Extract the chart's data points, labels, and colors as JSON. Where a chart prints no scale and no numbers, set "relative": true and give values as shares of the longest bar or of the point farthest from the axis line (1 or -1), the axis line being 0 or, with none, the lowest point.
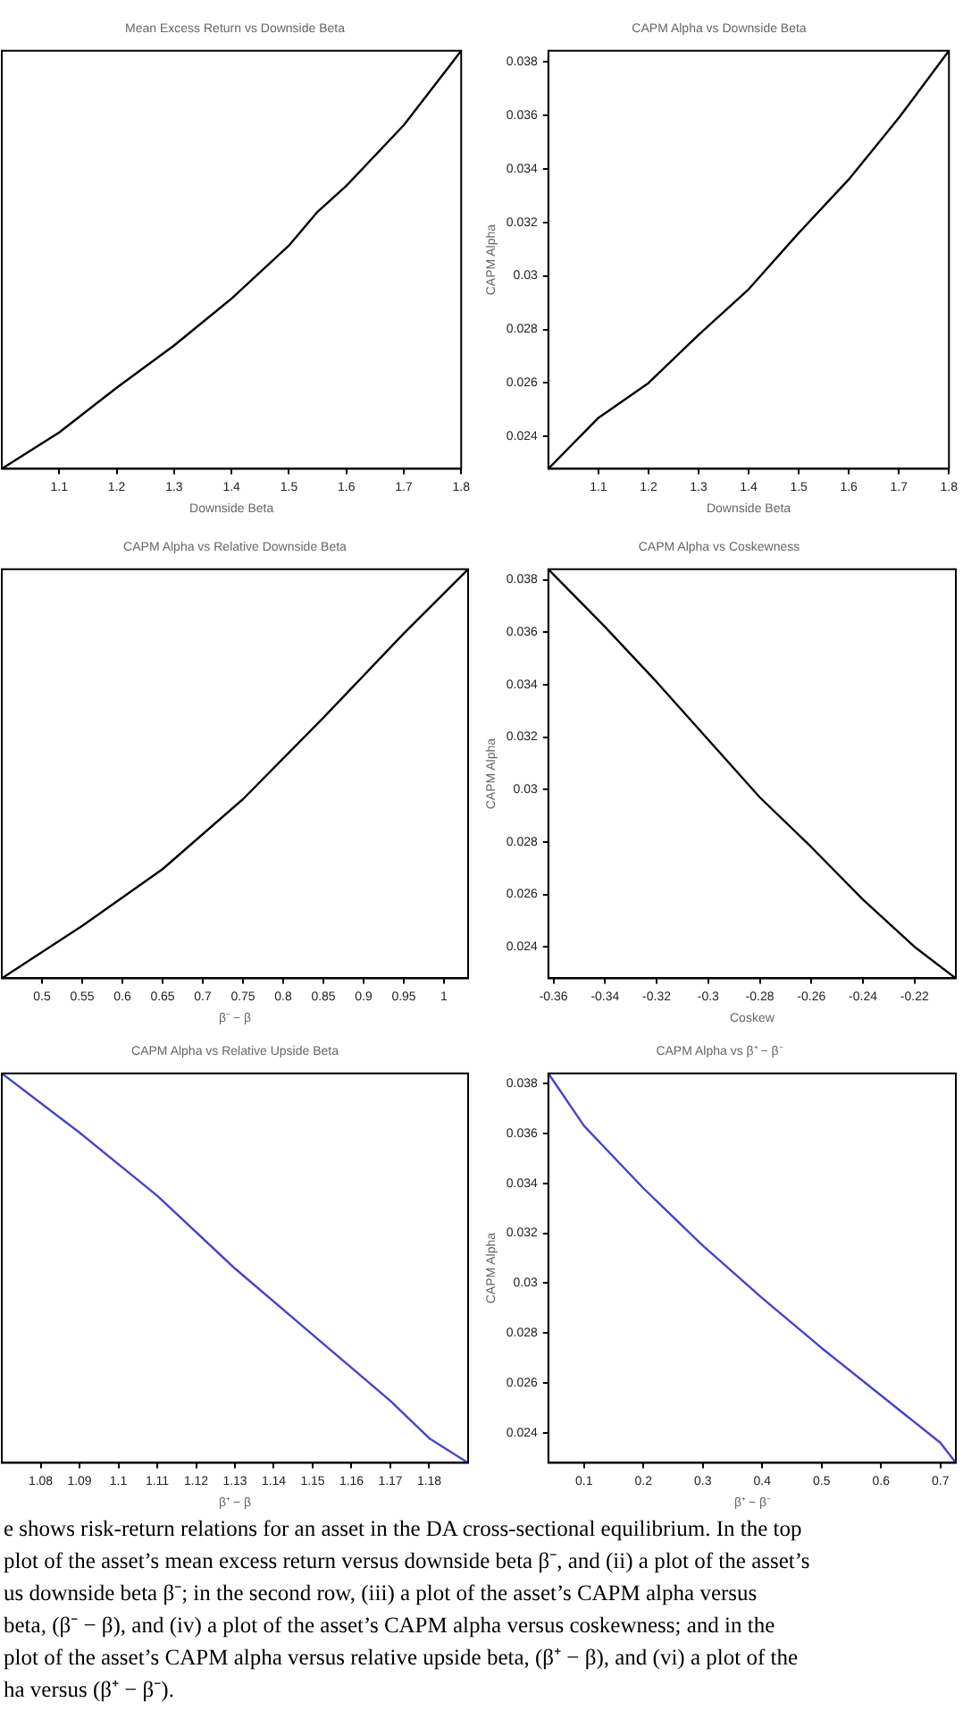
{
  "chart_data": [
    {
      "type": "line",
      "title": "Mean Excess Return vs Downside Beta",
      "xlabel": "Downside Beta",
      "relative": true,
      "tick_labels": "x",
      "color": "#000000",
      "xlim": [
        1.0,
        1.8
      ],
      "xticks": [
        1.1,
        1.2,
        1.3,
        1.4,
        1.5,
        1.6,
        1.7,
        1.8
      ],
      "x": [
        1.0,
        1.1,
        1.2,
        1.3,
        1.4,
        1.5,
        1.55,
        1.6,
        1.7,
        1.8
      ],
      "values": [
        0,
        0.087,
        0.194,
        0.295,
        0.407,
        0.534,
        0.615,
        0.677,
        0.822,
        1
      ]
    },
    {
      "type": "line",
      "title": "CAPM Alpha vs Downside Beta",
      "xlabel": "Downside Beta",
      "ylabel": "CAPM Alpha",
      "color": "#000000",
      "xlim": [
        1.0,
        1.8
      ],
      "xticks": [
        1.1,
        1.2,
        1.3,
        1.4,
        1.5,
        1.6,
        1.7,
        1.8
      ],
      "ylim": [
        0.0228,
        0.0384
      ],
      "yticks": [
        0.024,
        0.026,
        0.028,
        0.03,
        0.032,
        0.034,
        0.036,
        0.038
      ],
      "x": [
        1.0,
        1.1,
        1.2,
        1.3,
        1.4,
        1.5,
        1.6,
        1.7,
        1.8
      ],
      "values": [
        0.0228,
        0.0247,
        0.026,
        0.0278,
        0.0295,
        0.0316,
        0.0336,
        0.0359,
        0.0384
      ]
    },
    {
      "type": "line",
      "title": "CAPM Alpha vs Relative Downside Beta",
      "xlabel": "β⁻ − β",
      "relative": true,
      "tick_labels": "x",
      "color": "#000000",
      "xlim": [
        0.45,
        1.03
      ],
      "xticks": [
        0.5,
        0.55,
        0.6,
        0.65,
        0.7,
        0.75,
        0.8,
        0.85,
        0.9,
        0.95,
        1
      ],
      "x": [
        0.45,
        0.55,
        0.65,
        0.75,
        0.85,
        0.95,
        1.03
      ],
      "values": [
        0,
        0.128,
        0.267,
        0.438,
        0.637,
        0.843,
        1
      ]
    },
    {
      "type": "line",
      "title": "CAPM Alpha vs Coskewness",
      "xlabel": "Coskew",
      "ylabel": "CAPM Alpha",
      "color": "#000000",
      "xlim": [
        -0.362,
        -0.204
      ],
      "xticks": [
        -0.36,
        -0.34,
        -0.32,
        -0.3,
        -0.28,
        -0.26,
        -0.24,
        -0.22
      ],
      "ylim": [
        0.0228,
        0.0384
      ],
      "yticks": [
        0.024,
        0.026,
        0.028,
        0.03,
        0.032,
        0.034,
        0.036,
        0.038
      ],
      "x": [
        -0.362,
        -0.34,
        -0.32,
        -0.3,
        -0.28,
        -0.26,
        -0.24,
        -0.22,
        -0.204
      ],
      "values": [
        0.0384,
        0.0362,
        0.0341,
        0.0319,
        0.0297,
        0.0278,
        0.0258,
        0.024,
        0.0228
      ]
    },
    {
      "type": "line",
      "title": "CAPM Alpha vs Relative Upside Beta",
      "xlabel": "β⁺ − β",
      "relative": true,
      "tick_labels": "x",
      "color": "#4444cc",
      "xlim": [
        1.07,
        1.19
      ],
      "xticks": [
        1.08,
        1.09,
        1.1,
        1.11,
        1.12,
        1.13,
        1.14,
        1.15,
        1.16,
        1.17,
        1.18
      ],
      "x": [
        1.07,
        1.09,
        1.11,
        1.13,
        1.15,
        1.17,
        1.18,
        1.19
      ],
      "values": [
        1,
        0.848,
        0.686,
        0.499,
        0.329,
        0.159,
        0.063,
        0
      ]
    },
    {
      "type": "line",
      "title": "CAPM Alpha vs β⁺ − β⁻",
      "xlabel": "β⁺ − β⁻",
      "ylabel": "CAPM Alpha",
      "color": "#4444cc",
      "xlim": [
        0.04,
        0.726
      ],
      "xticks": [
        0.1,
        0.2,
        0.3,
        0.4,
        0.5,
        0.6,
        0.7
      ],
      "ylim": [
        0.0228,
        0.0384
      ],
      "yticks": [
        0.024,
        0.026,
        0.028,
        0.03,
        0.032,
        0.034,
        0.036,
        0.038
      ],
      "x": [
        0.04,
        0.1,
        0.2,
        0.3,
        0.4,
        0.5,
        0.6,
        0.7,
        0.726
      ],
      "values": [
        0.0384,
        0.0363,
        0.0338,
        0.0315,
        0.0294,
        0.0274,
        0.0255,
        0.0236,
        0.0228
      ],
      "annotations": [
        "e shows risk-return relations for an asset in the DA cross-sectional equilibrium. In the top",
        "plot of the asset’s mean excess return versus downside beta β⁻, and (ii) a plot of the asset’s",
        "us downside beta β⁻; in the second row, (iii) a plot of the asset’s CAPM alpha versus",
        "beta, (β⁻ − β), and (iv) a plot of the asset’s CAPM alpha versus coskewness; and in the",
        "plot of the asset’s CAPM alpha versus relative upside beta, (β⁺ − β), and (vi) a plot of the",
        "ha versus (β⁺ − β⁻)."
      ]
    }
  ]
}
